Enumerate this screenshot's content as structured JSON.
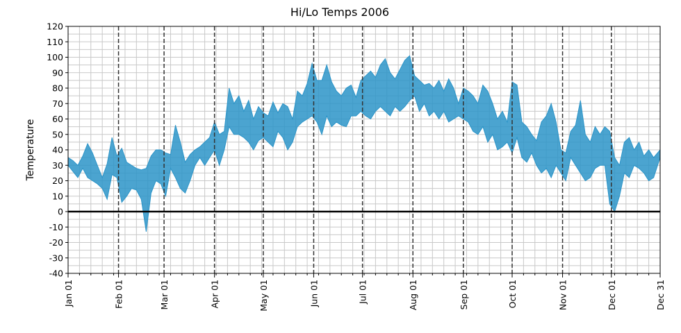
{
  "chart_data": {
    "type": "area",
    "title": "Hi/Lo Temps 2006",
    "xlabel": "",
    "ylabel": "Temperature",
    "x_range": [
      "2006-01-01",
      "2006-12-31"
    ],
    "ylim": [
      -40,
      120
    ],
    "y_ticks": [
      -40,
      -30,
      -20,
      -10,
      0,
      10,
      20,
      30,
      40,
      50,
      60,
      70,
      80,
      90,
      100,
      110,
      120
    ],
    "x_ticks": [
      {
        "date": "2006-01-01",
        "label": "Jan 01"
      },
      {
        "date": "2006-02-01",
        "label": "Feb 01"
      },
      {
        "date": "2006-03-01",
        "label": "Mar 01"
      },
      {
        "date": "2006-04-01",
        "label": "Apr 01"
      },
      {
        "date": "2006-05-01",
        "label": "May 01"
      },
      {
        "date": "2006-06-01",
        "label": "Jun 01"
      },
      {
        "date": "2006-07-01",
        "label": "Jul 01"
      },
      {
        "date": "2006-08-01",
        "label": "Aug 01"
      },
      {
        "date": "2006-09-01",
        "label": "Sep 01"
      },
      {
        "date": "2006-10-01",
        "label": "Oct 01"
      },
      {
        "date": "2006-11-01",
        "label": "Nov 01"
      },
      {
        "date": "2006-12-01",
        "label": "Dec 01"
      },
      {
        "date": "2006-12-31",
        "label": "Dec 31"
      }
    ],
    "grid": true,
    "minor_x_grid_interval_days": 7,
    "minor_y_grid_interval": 5,
    "month_lines": "dashed",
    "zero_line": true,
    "fill_color": "#2b94c8",
    "series": [
      {
        "x": [
          "2006-01-01",
          "2006-01-04",
          "2006-01-07",
          "2006-01-10",
          "2006-01-13",
          "2006-01-16",
          "2006-01-19",
          "2006-01-22",
          "2006-01-25",
          "2006-01-28",
          "2006-01-31",
          "2006-02-03",
          "2006-02-06",
          "2006-02-09",
          "2006-02-12",
          "2006-02-15",
          "2006-02-18",
          "2006-02-21",
          "2006-02-24",
          "2006-02-27",
          "2006-03-02",
          "2006-03-05",
          "2006-03-08",
          "2006-03-11",
          "2006-03-14",
          "2006-03-17",
          "2006-03-20",
          "2006-03-23",
          "2006-03-26",
          "2006-03-29",
          "2006-04-01",
          "2006-04-04",
          "2006-04-07",
          "2006-04-10",
          "2006-04-13",
          "2006-04-16",
          "2006-04-19",
          "2006-04-22",
          "2006-04-25",
          "2006-04-28",
          "2006-05-01",
          "2006-05-04",
          "2006-05-07",
          "2006-05-10",
          "2006-05-13",
          "2006-05-16",
          "2006-05-19",
          "2006-05-22",
          "2006-05-25",
          "2006-05-28",
          "2006-05-31",
          "2006-06-03",
          "2006-06-06",
          "2006-06-09",
          "2006-06-12",
          "2006-06-15",
          "2006-06-18",
          "2006-06-21",
          "2006-06-24",
          "2006-06-27",
          "2006-06-30",
          "2006-07-03",
          "2006-07-06",
          "2006-07-09",
          "2006-07-12",
          "2006-07-15",
          "2006-07-18",
          "2006-07-21",
          "2006-07-24",
          "2006-07-27",
          "2006-07-30",
          "2006-08-02",
          "2006-08-05",
          "2006-08-08",
          "2006-08-11",
          "2006-08-14",
          "2006-08-17",
          "2006-08-20",
          "2006-08-23",
          "2006-08-26",
          "2006-08-29",
          "2006-09-01",
          "2006-09-04",
          "2006-09-07",
          "2006-09-10",
          "2006-09-13",
          "2006-09-16",
          "2006-09-19",
          "2006-09-22",
          "2006-09-25",
          "2006-09-28",
          "2006-10-01",
          "2006-10-04",
          "2006-10-07",
          "2006-10-10",
          "2006-10-13",
          "2006-10-16",
          "2006-10-19",
          "2006-10-22",
          "2006-10-25",
          "2006-10-28",
          "2006-10-31",
          "2006-11-03",
          "2006-11-06",
          "2006-11-09",
          "2006-11-12",
          "2006-11-15",
          "2006-11-18",
          "2006-11-21",
          "2006-11-24",
          "2006-11-27",
          "2006-11-30",
          "2006-12-03",
          "2006-12-06",
          "2006-12-09",
          "2006-12-12",
          "2006-12-15",
          "2006-12-18",
          "2006-12-21",
          "2006-12-24",
          "2006-12-27",
          "2006-12-31"
        ],
        "high": [
          35,
          33,
          30,
          36,
          44,
          38,
          30,
          22,
          31,
          48,
          36,
          41,
          32,
          30,
          28,
          27,
          28,
          36,
          40,
          40,
          38,
          37,
          56,
          45,
          32,
          37,
          40,
          42,
          45,
          48,
          58,
          50,
          52,
          80,
          70,
          75,
          65,
          72,
          60,
          68,
          64,
          62,
          71,
          64,
          70,
          68,
          60,
          78,
          75,
          83,
          96,
          85,
          85,
          95,
          84,
          78,
          75,
          80,
          82,
          74,
          85,
          88,
          91,
          87,
          95,
          99,
          90,
          86,
          92,
          98,
          101,
          88,
          85,
          82,
          83,
          80,
          85,
          78,
          86,
          80,
          70,
          80,
          78,
          75,
          70,
          82,
          78,
          70,
          60,
          65,
          58,
          84,
          82,
          58,
          55,
          50,
          46,
          58,
          62,
          70,
          58,
          40,
          38,
          52,
          56,
          72,
          50,
          45,
          55,
          50,
          55,
          52,
          35,
          30,
          45,
          48,
          40,
          45,
          36,
          40,
          35,
          40
        ],
        "low": [
          30,
          26,
          22,
          28,
          22,
          20,
          18,
          15,
          8,
          24,
          22,
          6,
          10,
          15,
          14,
          8,
          -13,
          12,
          20,
          18,
          10,
          28,
          22,
          15,
          12,
          20,
          30,
          35,
          30,
          35,
          40,
          30,
          40,
          55,
          50,
          50,
          48,
          45,
          40,
          46,
          48,
          45,
          42,
          52,
          48,
          40,
          45,
          55,
          58,
          60,
          62,
          58,
          50,
          62,
          55,
          58,
          56,
          55,
          62,
          62,
          65,
          62,
          60,
          65,
          68,
          65,
          62,
          68,
          65,
          68,
          72,
          75,
          65,
          70,
          62,
          65,
          60,
          65,
          58,
          60,
          62,
          60,
          58,
          52,
          50,
          55,
          45,
          50,
          40,
          42,
          45,
          38,
          48,
          35,
          32,
          38,
          30,
          25,
          28,
          22,
          30,
          25,
          20,
          35,
          30,
          25,
          20,
          22,
          28,
          30,
          30,
          5,
          0,
          10,
          25,
          22,
          30,
          28,
          25,
          20,
          22,
          35
        ]
      }
    ]
  }
}
